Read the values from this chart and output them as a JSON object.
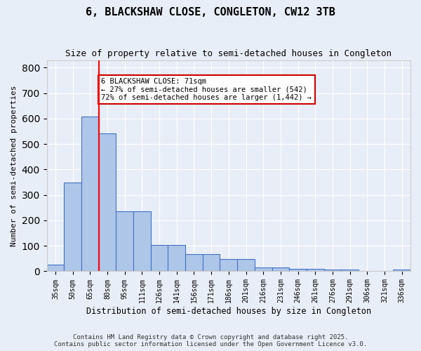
{
  "title": "6, BLACKSHAW CLOSE, CONGLETON, CW12 3TB",
  "subtitle": "Size of property relative to semi-detached houses in Congleton",
  "xlabel": "Distribution of semi-detached houses by size in Congleton",
  "ylabel": "Number of semi-detached properties",
  "categories": [
    "35sqm",
    "50sqm",
    "65sqm",
    "80sqm",
    "95sqm",
    "111sqm",
    "126sqm",
    "141sqm",
    "156sqm",
    "171sqm",
    "186sqm",
    "201sqm",
    "216sqm",
    "231sqm",
    "246sqm",
    "261sqm",
    "276sqm",
    "291sqm",
    "306sqm",
    "321sqm",
    "336sqm"
  ],
  "values": [
    27,
    348,
    609,
    541,
    237,
    237,
    103,
    103,
    67,
    67,
    48,
    48,
    14,
    14,
    9,
    9,
    6,
    6,
    1,
    1,
    8
  ],
  "bar_color": "#aec6e8",
  "bar_edge_color": "#4472c4",
  "bg_color": "#e8eef7",
  "grid_color": "#ffffff",
  "red_line_x": 2.5,
  "annotation_text": "6 BLACKSHAW CLOSE: 71sqm\n← 27% of semi-detached houses are smaller (542)\n72% of semi-detached houses are larger (1,442) →",
  "annotation_box_color": "#ffffff",
  "annotation_box_edge": "#cc0000",
  "ylim": [
    0,
    830
  ],
  "footer": "Contains HM Land Registry data © Crown copyright and database right 2025.\nContains public sector information licensed under the Open Government Licence v3.0."
}
